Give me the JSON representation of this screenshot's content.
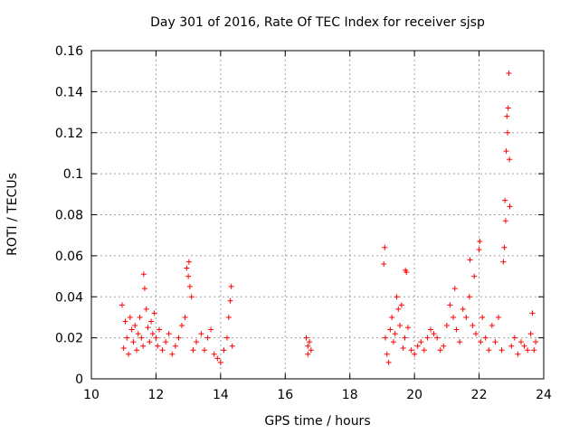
{
  "chart_data": {
    "type": "scatter",
    "title": "Day 301 of 2016, Rate Of TEC Index for receiver sjsp",
    "xlabel": "GPS time / hours",
    "ylabel": "ROTI / TECUs",
    "xlim": [
      10,
      24
    ],
    "ylim": [
      0,
      0.16
    ],
    "xticks": [
      10,
      12,
      14,
      16,
      18,
      20,
      22,
      24
    ],
    "xtick_labels": [
      "10",
      "12",
      "14",
      "16",
      "18",
      "20",
      "22",
      "24"
    ],
    "yticks": [
      0,
      0.02,
      0.04,
      0.06,
      0.08,
      0.1,
      0.12,
      0.14,
      0.16
    ],
    "ytick_labels": [
      "0",
      "0.02",
      "0.04",
      "0.06",
      "0.08",
      "0.1",
      "0.12",
      "0.14",
      "0.16"
    ],
    "grid": true,
    "marker": "+",
    "color": "#ff0000",
    "series": [
      {
        "name": "ROTI",
        "points": [
          [
            10.95,
            0.036
          ],
          [
            11.0,
            0.015
          ],
          [
            11.05,
            0.028
          ],
          [
            11.1,
            0.02
          ],
          [
            11.15,
            0.012
          ],
          [
            11.2,
            0.03
          ],
          [
            11.25,
            0.024
          ],
          [
            11.3,
            0.018
          ],
          [
            11.35,
            0.026
          ],
          [
            11.4,
            0.014
          ],
          [
            11.45,
            0.022
          ],
          [
            11.5,
            0.03
          ],
          [
            11.55,
            0.02
          ],
          [
            11.6,
            0.016
          ],
          [
            11.62,
            0.051
          ],
          [
            11.65,
            0.044
          ],
          [
            11.7,
            0.034
          ],
          [
            11.75,
            0.025
          ],
          [
            11.8,
            0.018
          ],
          [
            11.85,
            0.028
          ],
          [
            11.9,
            0.022
          ],
          [
            11.95,
            0.032
          ],
          [
            12.0,
            0.02
          ],
          [
            12.05,
            0.016
          ],
          [
            12.1,
            0.024
          ],
          [
            12.2,
            0.014
          ],
          [
            12.3,
            0.018
          ],
          [
            12.4,
            0.022
          ],
          [
            12.5,
            0.012
          ],
          [
            12.6,
            0.016
          ],
          [
            12.7,
            0.02
          ],
          [
            12.8,
            0.026
          ],
          [
            12.9,
            0.03
          ],
          [
            12.95,
            0.054
          ],
          [
            13.0,
            0.05
          ],
          [
            13.02,
            0.057
          ],
          [
            13.05,
            0.045
          ],
          [
            13.1,
            0.04
          ],
          [
            13.15,
            0.014
          ],
          [
            13.25,
            0.018
          ],
          [
            13.4,
            0.022
          ],
          [
            13.5,
            0.014
          ],
          [
            13.6,
            0.02
          ],
          [
            13.7,
            0.024
          ],
          [
            13.8,
            0.012
          ],
          [
            13.9,
            0.01
          ],
          [
            14.0,
            0.008
          ],
          [
            14.1,
            0.014
          ],
          [
            14.2,
            0.02
          ],
          [
            14.25,
            0.03
          ],
          [
            14.3,
            0.038
          ],
          [
            14.33,
            0.045
          ],
          [
            14.36,
            0.016
          ],
          [
            16.65,
            0.02
          ],
          [
            16.7,
            0.016
          ],
          [
            16.75,
            0.018
          ],
          [
            16.8,
            0.014
          ],
          [
            16.7,
            0.012
          ],
          [
            19.05,
            0.056
          ],
          [
            19.08,
            0.064
          ],
          [
            19.1,
            0.02
          ],
          [
            19.15,
            0.012
          ],
          [
            19.2,
            0.008
          ],
          [
            19.25,
            0.024
          ],
          [
            19.3,
            0.03
          ],
          [
            19.35,
            0.018
          ],
          [
            19.4,
            0.022
          ],
          [
            19.45,
            0.04
          ],
          [
            19.5,
            0.034
          ],
          [
            19.55,
            0.026
          ],
          [
            19.6,
            0.036
          ],
          [
            19.65,
            0.015
          ],
          [
            19.7,
            0.02
          ],
          [
            19.72,
            0.053
          ],
          [
            19.75,
            0.052
          ],
          [
            19.8,
            0.025
          ],
          [
            19.9,
            0.014
          ],
          [
            20.0,
            0.012
          ],
          [
            20.1,
            0.016
          ],
          [
            20.2,
            0.018
          ],
          [
            20.3,
            0.014
          ],
          [
            20.4,
            0.02
          ],
          [
            20.5,
            0.024
          ],
          [
            20.6,
            0.022
          ],
          [
            20.7,
            0.02
          ],
          [
            20.8,
            0.014
          ],
          [
            20.9,
            0.016
          ],
          [
            21.0,
            0.026
          ],
          [
            21.1,
            0.036
          ],
          [
            21.2,
            0.03
          ],
          [
            21.25,
            0.044
          ],
          [
            21.3,
            0.024
          ],
          [
            21.4,
            0.018
          ],
          [
            21.5,
            0.034
          ],
          [
            21.6,
            0.03
          ],
          [
            21.7,
            0.04
          ],
          [
            21.72,
            0.058
          ],
          [
            21.8,
            0.026
          ],
          [
            21.85,
            0.05
          ],
          [
            21.9,
            0.022
          ],
          [
            22.0,
            0.063
          ],
          [
            22.02,
            0.067
          ],
          [
            22.05,
            0.018
          ],
          [
            22.1,
            0.03
          ],
          [
            22.2,
            0.02
          ],
          [
            22.3,
            0.014
          ],
          [
            22.4,
            0.026
          ],
          [
            22.5,
            0.018
          ],
          [
            22.6,
            0.03
          ],
          [
            22.7,
            0.014
          ],
          [
            22.75,
            0.057
          ],
          [
            22.78,
            0.064
          ],
          [
            22.8,
            0.087
          ],
          [
            22.82,
            0.077
          ],
          [
            22.84,
            0.111
          ],
          [
            22.86,
            0.128
          ],
          [
            22.88,
            0.12
          ],
          [
            22.9,
            0.132
          ],
          [
            22.92,
            0.149
          ],
          [
            22.94,
            0.107
          ],
          [
            22.95,
            0.084
          ],
          [
            23.0,
            0.016
          ],
          [
            23.1,
            0.02
          ],
          [
            23.2,
            0.012
          ],
          [
            23.3,
            0.018
          ],
          [
            23.4,
            0.016
          ],
          [
            23.5,
            0.014
          ],
          [
            23.6,
            0.022
          ],
          [
            23.65,
            0.032
          ],
          [
            23.7,
            0.014
          ],
          [
            23.75,
            0.018
          ]
        ]
      }
    ]
  }
}
